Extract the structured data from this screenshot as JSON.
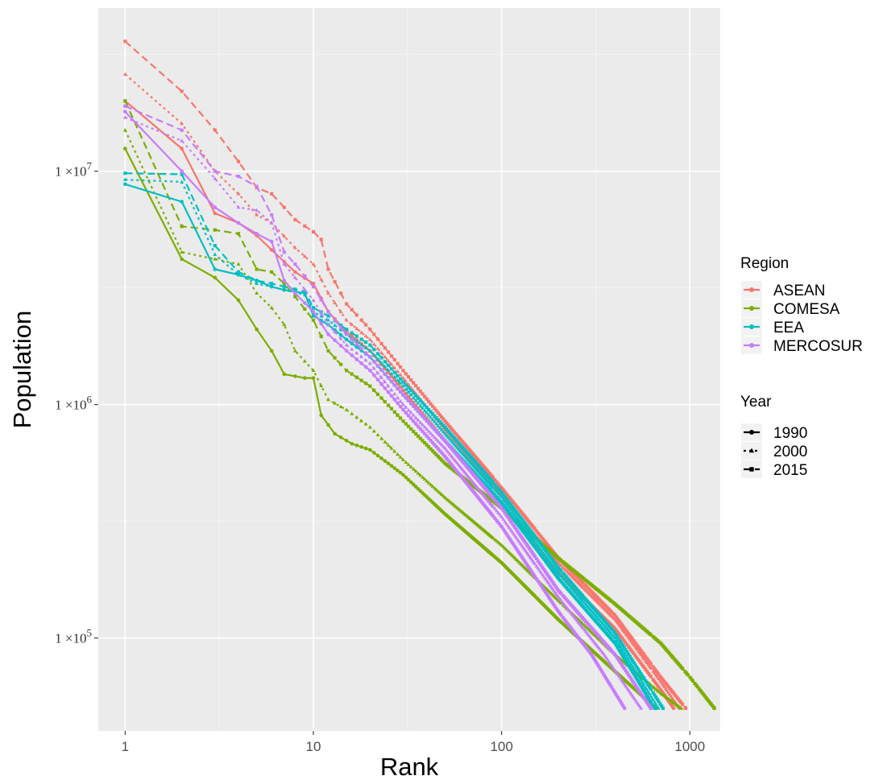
{
  "chart_data": {
    "type": "line",
    "title": "",
    "xlabel": "Rank",
    "ylabel": "Population",
    "x_scale": "log",
    "y_scale": "log",
    "xlim": [
      0.72,
      1450
    ],
    "ylim": [
      40000,
      50000000
    ],
    "x_ticks": [
      {
        "value": 1,
        "label": "1"
      },
      {
        "value": 10,
        "label": "10"
      },
      {
        "value": 100,
        "label": "100"
      },
      {
        "value": 1000,
        "label": "1000"
      }
    ],
    "y_ticks": [
      {
        "value": 100000,
        "mantissa": "1 ×10",
        "exponent": "5"
      },
      {
        "value": 1000000,
        "mantissa": "1 ×10",
        "exponent": "6"
      },
      {
        "value": 10000000,
        "mantissa": "1 ×10",
        "exponent": "7"
      }
    ],
    "grid": true,
    "legend_placement": "right",
    "legends": {
      "color": {
        "title": "Region",
        "entries": [
          {
            "label": "ASEAN",
            "color": "#F8766D"
          },
          {
            "label": "COMESA",
            "color": "#7CAE00"
          },
          {
            "label": "EEA",
            "color": "#00BFC4"
          },
          {
            "label": "MERCOSUR",
            "color": "#C77CFF"
          }
        ]
      },
      "linetype": {
        "title": "Year",
        "entries": [
          {
            "label": "1990",
            "dash": "solid",
            "shape": "circle"
          },
          {
            "label": "2000",
            "dash": "dotted",
            "shape": "triangle"
          },
          {
            "label": "2015",
            "dash": "dashed",
            "shape": "square"
          }
        ]
      }
    },
    "series": [
      {
        "region": "ASEAN",
        "year": "1990",
        "color": "#F8766D",
        "dash": "solid",
        "shape": "circle",
        "x": [
          1,
          2,
          3,
          4,
          5,
          6,
          8,
          10,
          12,
          15,
          20,
          30,
          50,
          100,
          200,
          400,
          700,
          820
        ],
        "y": [
          20000000,
          12500000,
          6600000,
          6000000,
          5300000,
          4600000,
          3700000,
          3300000,
          2500000,
          2050000,
          1700000,
          1150000,
          700000,
          370000,
          190000,
          110000,
          60000,
          50000
        ]
      },
      {
        "region": "ASEAN",
        "year": "2000",
        "color": "#F8766D",
        "dash": "dotted",
        "shape": "triangle",
        "x": [
          1,
          2,
          3,
          4,
          5,
          6,
          8,
          10,
          12,
          15,
          20,
          30,
          50,
          100,
          200,
          400,
          700,
          880
        ],
        "y": [
          26000000,
          16000000,
          10000000,
          8000000,
          6500000,
          6000000,
          4700000,
          4000000,
          3000000,
          2300000,
          1900000,
          1300000,
          780000,
          410000,
          210000,
          120000,
          65000,
          50000
        ]
      },
      {
        "region": "ASEAN",
        "year": "2015",
        "color": "#F8766D",
        "dash": "dashed",
        "shape": "square",
        "x": [
          1,
          2,
          3,
          4,
          5,
          6,
          7,
          8,
          10,
          11,
          12,
          15,
          20,
          30,
          50,
          100,
          200,
          400,
          700,
          950
        ],
        "y": [
          36000000,
          22000000,
          15000000,
          11000000,
          8500000,
          8000000,
          7000000,
          6200000,
          5500000,
          5100000,
          3800000,
          2700000,
          2100000,
          1400000,
          850000,
          440000,
          220000,
          125000,
          68000,
          50000
        ]
      },
      {
        "region": "COMESA",
        "year": "1990",
        "color": "#7CAE00",
        "dash": "solid",
        "shape": "circle",
        "x": [
          1,
          2,
          3,
          4,
          5,
          6,
          7,
          9,
          10,
          11,
          13,
          16,
          20,
          25,
          30,
          50,
          100,
          200,
          400,
          660
        ],
        "y": [
          12500000,
          4200000,
          3500000,
          2800000,
          2100000,
          1700000,
          1350000,
          1300000,
          1300000,
          900000,
          750000,
          680000,
          640000,
          560000,
          500000,
          340000,
          210000,
          120000,
          72000,
          50000
        ]
      },
      {
        "region": "COMESA",
        "year": "2000",
        "color": "#7CAE00",
        "dash": "dotted",
        "shape": "triangle",
        "x": [
          1,
          2,
          3,
          4,
          5,
          6,
          7,
          8,
          10,
          12,
          15,
          20,
          30,
          50,
          100,
          200,
          400,
          700,
          900
        ],
        "y": [
          15000000,
          4500000,
          4200000,
          4000000,
          3000000,
          2600000,
          2200000,
          1700000,
          1400000,
          1050000,
          950000,
          800000,
          580000,
          400000,
          250000,
          145000,
          85000,
          58000,
          50000
        ]
      },
      {
        "region": "COMESA",
        "year": "2015",
        "color": "#7CAE00",
        "dash": "dashed",
        "shape": "square",
        "x": [
          1,
          2,
          3,
          4,
          5,
          6,
          7,
          8,
          10,
          12,
          15,
          20,
          30,
          50,
          100,
          200,
          400,
          700,
          1000,
          1350
        ],
        "y": [
          20000000,
          5800000,
          5600000,
          5400000,
          3800000,
          3700000,
          3300000,
          2900000,
          2300000,
          1700000,
          1400000,
          1200000,
          850000,
          560000,
          360000,
          220000,
          140000,
          95000,
          68000,
          50000
        ]
      },
      {
        "region": "EEA",
        "year": "1990",
        "color": "#00BFC4",
        "dash": "solid",
        "shape": "circle",
        "x": [
          1,
          2,
          3,
          4,
          5,
          6,
          7,
          9,
          10,
          12,
          15,
          20,
          30,
          50,
          100,
          200,
          400,
          650
        ],
        "y": [
          8800000,
          7400000,
          3800000,
          3600000,
          3400000,
          3200000,
          3100000,
          3000000,
          2400000,
          2200000,
          1900000,
          1600000,
          1100000,
          700000,
          380000,
          180000,
          95000,
          50000
        ]
      },
      {
        "region": "EEA",
        "year": "2000",
        "color": "#00BFC4",
        "dash": "dotted",
        "shape": "triangle",
        "x": [
          1,
          2,
          3,
          4,
          5,
          6,
          7,
          9,
          10,
          12,
          15,
          20,
          30,
          50,
          100,
          200,
          400,
          680
        ],
        "y": [
          9200000,
          9000000,
          4400000,
          3600000,
          3300000,
          3200000,
          3100000,
          2950000,
          2500000,
          2300000,
          2000000,
          1700000,
          1200000,
          750000,
          400000,
          190000,
          100000,
          50000
        ]
      },
      {
        "region": "EEA",
        "year": "2015",
        "color": "#00BFC4",
        "dash": "dashed",
        "shape": "square",
        "x": [
          1,
          2,
          3,
          4,
          5,
          6,
          7,
          9,
          10,
          12,
          15,
          20,
          30,
          50,
          100,
          200,
          400,
          720
        ],
        "y": [
          9800000,
          9700000,
          4800000,
          3700000,
          3400000,
          3300000,
          3200000,
          3050000,
          2600000,
          2400000,
          2100000,
          1800000,
          1250000,
          800000,
          420000,
          200000,
          105000,
          50000
        ]
      },
      {
        "region": "MERCOSUR",
        "year": "1990",
        "color": "#C77CFF",
        "dash": "solid",
        "shape": "circle",
        "x": [
          1,
          2,
          3,
          4,
          5,
          6,
          7,
          8,
          10,
          12,
          15,
          20,
          30,
          50,
          100,
          200,
          300,
          450
        ],
        "y": [
          18000000,
          10000000,
          7000000,
          6000000,
          5400000,
          5000000,
          3400000,
          3000000,
          2500000,
          2000000,
          1700000,
          1400000,
          950000,
          600000,
          300000,
          130000,
          85000,
          50000
        ]
      },
      {
        "region": "MERCOSUR",
        "year": "2000",
        "color": "#C77CFF",
        "dash": "dotted",
        "shape": "triangle",
        "x": [
          1,
          2,
          3,
          4,
          5,
          6,
          7,
          8,
          10,
          12,
          15,
          20,
          30,
          50,
          100,
          200,
          350,
          550
        ],
        "y": [
          17000000,
          13500000,
          9300000,
          7000000,
          6800000,
          6000000,
          4000000,
          3500000,
          2800000,
          2200000,
          1800000,
          1500000,
          1000000,
          650000,
          330000,
          150000,
          85000,
          50000
        ]
      },
      {
        "region": "MERCOSUR",
        "year": "2015",
        "color": "#C77CFF",
        "dash": "dashed",
        "shape": "square",
        "x": [
          1,
          2,
          3,
          4,
          5,
          6,
          7,
          8,
          10,
          12,
          15,
          20,
          30,
          50,
          100,
          200,
          400,
          620
        ],
        "y": [
          19000000,
          15000000,
          10000000,
          9500000,
          8600000,
          6500000,
          4500000,
          4000000,
          3200000,
          2500000,
          2000000,
          1600000,
          1100000,
          700000,
          360000,
          160000,
          85000,
          50000
        ]
      }
    ]
  }
}
